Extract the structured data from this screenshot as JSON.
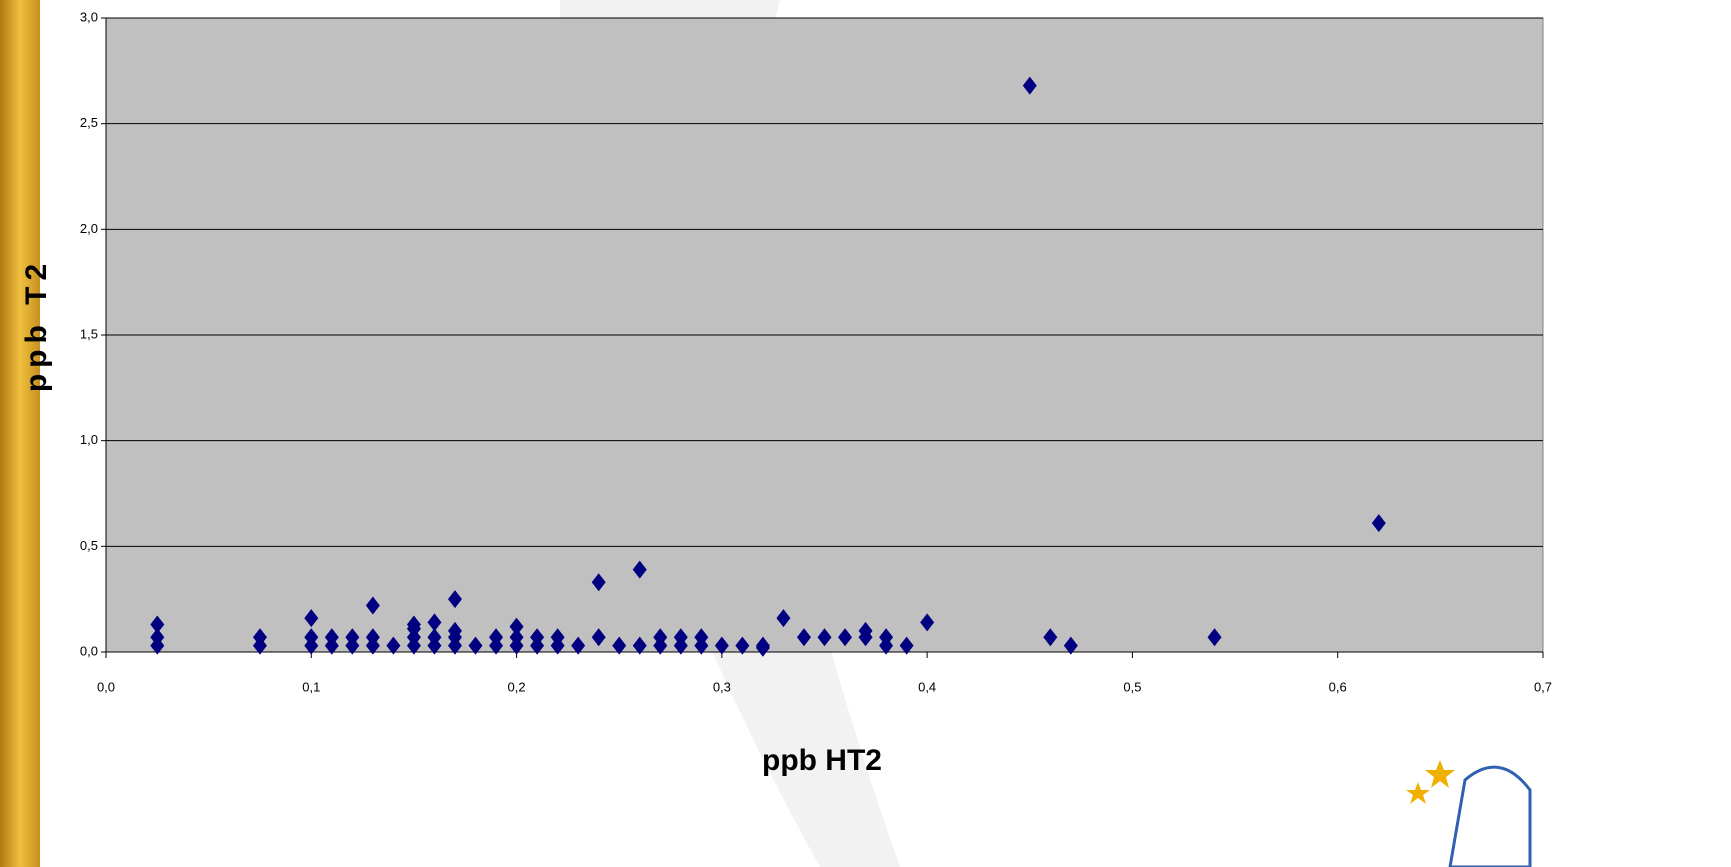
{
  "chart_data": {
    "type": "scatter",
    "x_label": "ppb HT2",
    "y_label": "ppb T2",
    "xlim": [
      0,
      0.7
    ],
    "ylim": [
      0,
      3
    ],
    "xticks": [
      {
        "value": 0,
        "label": "0,0"
      },
      {
        "value": 0.1,
        "label": "0,1"
      },
      {
        "value": 0.2,
        "label": "0,2"
      },
      {
        "value": 0.3,
        "label": "0,3"
      },
      {
        "value": 0.4,
        "label": "0,4"
      },
      {
        "value": 0.5,
        "label": "0,5"
      },
      {
        "value": 0.6,
        "label": "0,6"
      },
      {
        "value": 0.7,
        "label": "0,7"
      }
    ],
    "yticks": [
      {
        "value": 0,
        "label": "0,0"
      },
      {
        "value": 0.5,
        "label": "0,5"
      },
      {
        "value": 1,
        "label": "1,0"
      },
      {
        "value": 1.5,
        "label": "1,5"
      },
      {
        "value": 2,
        "label": "2,0"
      },
      {
        "value": 2.5,
        "label": "2,5"
      },
      {
        "value": 3,
        "label": "3,0"
      }
    ],
    "grid": true,
    "background": "#c0c0c0",
    "series": [
      {
        "color": "#000080",
        "x": [
          0.025,
          0.025,
          0.025,
          0.075,
          0.075,
          0.1,
          0.1,
          0.1,
          0.11,
          0.11,
          0.12,
          0.12,
          0.13,
          0.13,
          0.13,
          0.14,
          0.15,
          0.15,
          0.15,
          0.15,
          0.16,
          0.16,
          0.16,
          0.17,
          0.17,
          0.17,
          0.17,
          0.18,
          0.19,
          0.19,
          0.2,
          0.2,
          0.2,
          0.21,
          0.21,
          0.22,
          0.22,
          0.23,
          0.24,
          0.24,
          0.25,
          0.26,
          0.26,
          0.27,
          0.27,
          0.28,
          0.28,
          0.29,
          0.29,
          0.3,
          0.31,
          0.32,
          0.32,
          0.33,
          0.34,
          0.35,
          0.36,
          0.37,
          0.37,
          0.38,
          0.38,
          0.39,
          0.4,
          0.45,
          0.46,
          0.47,
          0.54,
          0.62
        ],
        "y": [
          0.03,
          0.07,
          0.13,
          0.03,
          0.07,
          0.03,
          0.07,
          0.16,
          0.03,
          0.07,
          0.03,
          0.07,
          0.03,
          0.07,
          0.22,
          0.03,
          0.03,
          0.07,
          0.11,
          0.13,
          0.03,
          0.07,
          0.14,
          0.03,
          0.07,
          0.1,
          0.25,
          0.03,
          0.03,
          0.07,
          0.03,
          0.07,
          0.12,
          0.03,
          0.07,
          0.03,
          0.07,
          0.03,
          0.07,
          0.33,
          0.03,
          0.03,
          0.39,
          0.03,
          0.07,
          0.03,
          0.07,
          0.03,
          0.07,
          0.03,
          0.03,
          0.03,
          0.02,
          0.16,
          0.07,
          0.07,
          0.07,
          0.07,
          0.1,
          0.03,
          0.07,
          0.03,
          0.14,
          2.68,
          0.07,
          0.03,
          0.07,
          0.61
        ]
      }
    ]
  }
}
